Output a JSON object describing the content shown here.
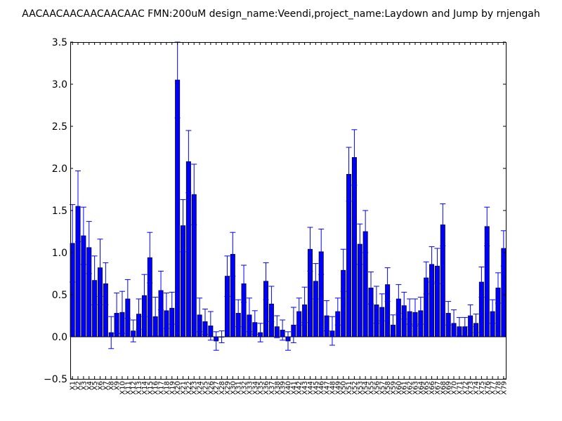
{
  "chart_data": {
    "type": "bar",
    "title": "AACAACAACAACAACAAC  FMN:200uM  design_name:Veendi,project_name:Laydown and Jump by rnjengah",
    "xlabel": "",
    "ylabel": "",
    "ylim": [
      -0.5,
      3.5
    ],
    "yticks": [
      -0.5,
      0.0,
      0.5,
      1.0,
      1.5,
      2.0,
      2.5,
      3.0,
      3.5
    ],
    "ytick_labels": [
      "−0.5",
      "0.0",
      "0.5",
      "1.0",
      "1.5",
      "2.0",
      "2.5",
      "3.0",
      "3.5"
    ],
    "grid": false,
    "bar_color": "#0000ff",
    "edge_color": "#000000",
    "error_color": "#0000ff",
    "categories": [
      "X1",
      "X2",
      "X3",
      "X4",
      "X5",
      "X6",
      "X7",
      "X8",
      "X9",
      "X10",
      "X11",
      "X12",
      "X13",
      "X14",
      "X15",
      "X16",
      "X17",
      "X18",
      "X19",
      "X20",
      "X21",
      "X22",
      "X23",
      "X24",
      "X25",
      "X26",
      "X27",
      "X28",
      "X29",
      "X30",
      "X31",
      "X32",
      "X33",
      "X34",
      "X35",
      "X36",
      "X37",
      "X38",
      "X39",
      "X40",
      "X41",
      "X42",
      "X43",
      "X44",
      "X45",
      "X46",
      "X47",
      "X48",
      "X49",
      "X50",
      "X51",
      "X52",
      "X53",
      "X54",
      "X55",
      "X56",
      "X57",
      "X58",
      "X59",
      "X60",
      "X61",
      "X62",
      "X63",
      "X64",
      "X65",
      "X66",
      "X67",
      "X68",
      "X69",
      "X70",
      "X71",
      "X72",
      "X73",
      "X74",
      "X75",
      "X76",
      "X77",
      "X78",
      "X79"
    ],
    "values": [
      1.11,
      1.55,
      1.2,
      1.06,
      0.67,
      0.82,
      0.63,
      0.05,
      0.28,
      0.29,
      0.45,
      0.07,
      0.27,
      0.49,
      0.94,
      0.24,
      0.55,
      0.31,
      0.34,
      3.05,
      1.32,
      2.08,
      1.69,
      0.26,
      0.18,
      0.13,
      -0.05,
      0.0,
      0.72,
      0.98,
      0.28,
      0.63,
      0.26,
      0.17,
      0.05,
      0.66,
      0.39,
      0.12,
      0.08,
      -0.05,
      0.14,
      0.3,
      0.38,
      1.04,
      0.66,
      1.01,
      0.25,
      0.07,
      0.3,
      0.79,
      1.93,
      2.13,
      1.1,
      1.25,
      0.58,
      0.38,
      0.35,
      0.62,
      0.14,
      0.45,
      0.37,
      0.3,
      0.29,
      0.31,
      0.7,
      0.86,
      0.84,
      1.33,
      0.28,
      0.16,
      0.12,
      0.12,
      0.25,
      0.16,
      0.65,
      1.31,
      0.3,
      0.58,
      1.05
    ],
    "errors": [
      0.46,
      0.42,
      0.34,
      0.31,
      0.29,
      0.34,
      0.25,
      0.19,
      0.24,
      0.25,
      0.23,
      0.13,
      0.18,
      0.25,
      0.3,
      0.23,
      0.23,
      0.21,
      0.19,
      0.45,
      0.31,
      0.37,
      0.36,
      0.2,
      0.15,
      0.17,
      0.11,
      0.07,
      0.24,
      0.26,
      0.16,
      0.22,
      0.2,
      0.14,
      0.11,
      0.22,
      0.21,
      0.13,
      0.12,
      0.11,
      0.21,
      0.16,
      0.21,
      0.26,
      0.21,
      0.27,
      0.18,
      0.17,
      0.16,
      0.25,
      0.32,
      0.33,
      0.24,
      0.25,
      0.19,
      0.22,
      0.16,
      0.2,
      0.12,
      0.17,
      0.16,
      0.15,
      0.16,
      0.16,
      0.19,
      0.21,
      0.21,
      0.25,
      0.14,
      0.16,
      0.11,
      0.11,
      0.13,
      0.11,
      0.18,
      0.23,
      0.14,
      0.18,
      0.21
    ]
  }
}
